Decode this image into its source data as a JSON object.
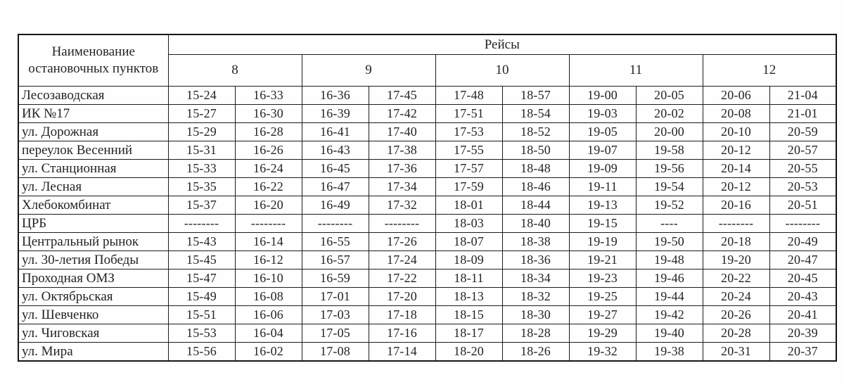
{
  "table": {
    "stop_header": "Наименование остановочных пунктов",
    "trips_header": "Рейсы",
    "trip_numbers": [
      "8",
      "9",
      "10",
      "11",
      "12"
    ],
    "rows": [
      {
        "stop": "Лесозаводская",
        "times": [
          "15-24",
          "16-33",
          "16-36",
          "17-45",
          "17-48",
          "18-57",
          "19-00",
          "20-05",
          "20-06",
          "21-04"
        ]
      },
      {
        "stop": "ИК №17",
        "times": [
          "15-27",
          "16-30",
          "16-39",
          "17-42",
          "17-51",
          "18-54",
          "19-03",
          "20-02",
          "20-08",
          "21-01"
        ]
      },
      {
        "stop": "ул. Дорожная",
        "times": [
          "15-29",
          "16-28",
          "16-41",
          "17-40",
          "17-53",
          "18-52",
          "19-05",
          "20-00",
          "20-10",
          "20-59"
        ]
      },
      {
        "stop": "переулок Весенний",
        "times": [
          "15-31",
          "16-26",
          "16-43",
          "17-38",
          "17-55",
          "18-50",
          "19-07",
          "19-58",
          "20-12",
          "20-57"
        ]
      },
      {
        "stop": "ул. Станционная",
        "times": [
          "15-33",
          "16-24",
          "16-45",
          "17-36",
          "17-57",
          "18-48",
          "19-09",
          "19-56",
          "20-14",
          "20-55"
        ]
      },
      {
        "stop": "ул. Лесная",
        "times": [
          "15-35",
          "16-22",
          "16-47",
          "17-34",
          "17-59",
          "18-46",
          "19-11",
          "19-54",
          "20-12",
          "20-53"
        ]
      },
      {
        "stop": "Хлебокомбинат",
        "times": [
          "15-37",
          "16-20",
          "16-49",
          "17-32",
          "18-01",
          "18-44",
          "19-13",
          "19-52",
          "20-16",
          "20-51"
        ]
      },
      {
        "stop": "ЦРБ",
        "times": [
          "--------",
          "--------",
          "--------",
          "--------",
          "18-03",
          "18-40",
          "19-15",
          "----",
          "--------",
          "--------"
        ]
      },
      {
        "stop": "Центральный рынок",
        "times": [
          "15-43",
          "16-14",
          "16-55",
          "17-26",
          "18-07",
          "18-38",
          "19-19",
          "19-50",
          "20-18",
          "20-49"
        ]
      },
      {
        "stop": "ул. 30-летия Победы",
        "times": [
          "15-45",
          "16-12",
          "16-57",
          "17-24",
          "18-09",
          "18-36",
          "19-21",
          "19-48",
          "19-20",
          "20-47"
        ]
      },
      {
        "stop": "Проходная ОМЗ",
        "times": [
          "15-47",
          "16-10",
          "16-59",
          "17-22",
          "18-11",
          "18-34",
          "19-23",
          "19-46",
          "20-22",
          "20-45"
        ]
      },
      {
        "stop": "ул. Октябрьская",
        "times": [
          "15-49",
          "16-08",
          "17-01",
          "17-20",
          "18-13",
          "18-32",
          "19-25",
          "19-44",
          "20-24",
          "20-43"
        ]
      },
      {
        "stop": "ул. Шевченко",
        "times": [
          "15-51",
          "16-06",
          "17-03",
          "17-18",
          "18-15",
          "18-30",
          "19-27",
          "19-42",
          "20-26",
          "20-41"
        ]
      },
      {
        "stop": "ул. Чиговская",
        "times": [
          "15-53",
          "16-04",
          "17-05",
          "17-16",
          "18-17",
          "18-28",
          "19-29",
          "19-40",
          "20-28",
          "20-39"
        ]
      },
      {
        "stop": "ул. Мира",
        "times": [
          "15-56",
          "16-02",
          "17-08",
          "17-14",
          "18-20",
          "18-26",
          "19-32",
          "19-38",
          "20-31",
          "20-37"
        ]
      }
    ]
  }
}
